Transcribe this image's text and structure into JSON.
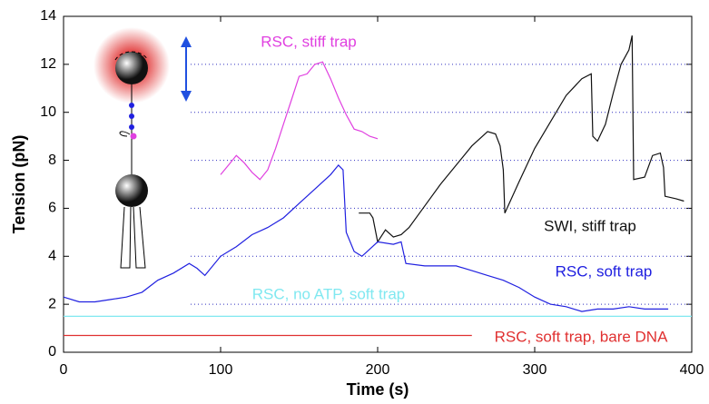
{
  "chart_data": {
    "type": "line",
    "xlabel": "Time (s)",
    "ylabel": "Tension (pN)",
    "xlim": [
      0,
      400
    ],
    "ylim": [
      0,
      14
    ],
    "xticks": [
      0,
      100,
      200,
      300,
      400
    ],
    "yticks": [
      0,
      2,
      4,
      6,
      8,
      10,
      12,
      14
    ],
    "grid": true,
    "series": [
      {
        "name": "RSC, stiff trap",
        "color": "#e040e0",
        "x": [
          100,
          105,
          110,
          115,
          120,
          125,
          130,
          135,
          140,
          145,
          150,
          155,
          160,
          165,
          170,
          175,
          180,
          185,
          190,
          195,
          200
        ],
        "values": [
          7.4,
          7.8,
          8.2,
          7.9,
          7.5,
          7.2,
          7.6,
          8.5,
          9.5,
          10.5,
          11.5,
          11.6,
          12.0,
          12.1,
          11.4,
          10.6,
          9.9,
          9.3,
          9.2,
          9.0,
          8.9
        ]
      },
      {
        "name": "SWI, stiff trap",
        "color": "#111111",
        "x": [
          188,
          195,
          197,
          200,
          205,
          210,
          215,
          220,
          230,
          240,
          250,
          260,
          270,
          275,
          278,
          280,
          281,
          290,
          300,
          310,
          320,
          330,
          336,
          337,
          340,
          345,
          350,
          355,
          360,
          362,
          363,
          370,
          375,
          380,
          382,
          383,
          390,
          395
        ],
        "values": [
          5.8,
          5.8,
          5.6,
          4.6,
          5.1,
          4.8,
          4.9,
          5.2,
          6.1,
          7.0,
          7.8,
          8.6,
          9.2,
          9.1,
          8.6,
          7.6,
          5.8,
          7.1,
          8.5,
          9.6,
          10.7,
          11.4,
          11.6,
          9.0,
          8.8,
          9.5,
          10.8,
          12.0,
          12.6,
          13.2,
          7.2,
          7.3,
          8.2,
          8.3,
          7.7,
          6.5,
          6.4,
          6.3
        ]
      },
      {
        "name": "RSC, soft trap",
        "color": "#2020e0",
        "x": [
          0,
          10,
          20,
          30,
          40,
          50,
          60,
          70,
          80,
          85,
          90,
          100,
          110,
          120,
          130,
          140,
          150,
          160,
          170,
          175,
          178,
          180,
          185,
          190,
          195,
          200,
          210,
          215,
          218,
          230,
          250,
          260,
          270,
          280,
          290,
          300,
          310,
          320,
          330,
          340,
          350,
          360,
          370,
          385
        ],
        "values": [
          2.3,
          2.1,
          2.1,
          2.2,
          2.3,
          2.5,
          3.0,
          3.3,
          3.7,
          3.5,
          3.2,
          4.0,
          4.4,
          4.9,
          5.2,
          5.6,
          6.2,
          6.8,
          7.4,
          7.8,
          7.6,
          5.0,
          4.2,
          4.0,
          4.3,
          4.6,
          4.5,
          4.6,
          3.7,
          3.6,
          3.6,
          3.4,
          3.2,
          3.0,
          2.7,
          2.3,
          2.0,
          1.9,
          1.7,
          1.8,
          1.8,
          1.9,
          1.8,
          1.8
        ]
      },
      {
        "name": "RSC, no ATP, soft trap",
        "color": "#80e8f0",
        "x": [
          0,
          400
        ],
        "values": [
          1.5,
          1.5
        ]
      },
      {
        "name": "RSC, soft trap, bare DNA",
        "color": "#e03030",
        "x": [
          0,
          50,
          100,
          150,
          200,
          260
        ],
        "values": [
          0.7,
          0.7,
          0.7,
          0.7,
          0.7,
          0.7
        ]
      }
    ]
  }
}
